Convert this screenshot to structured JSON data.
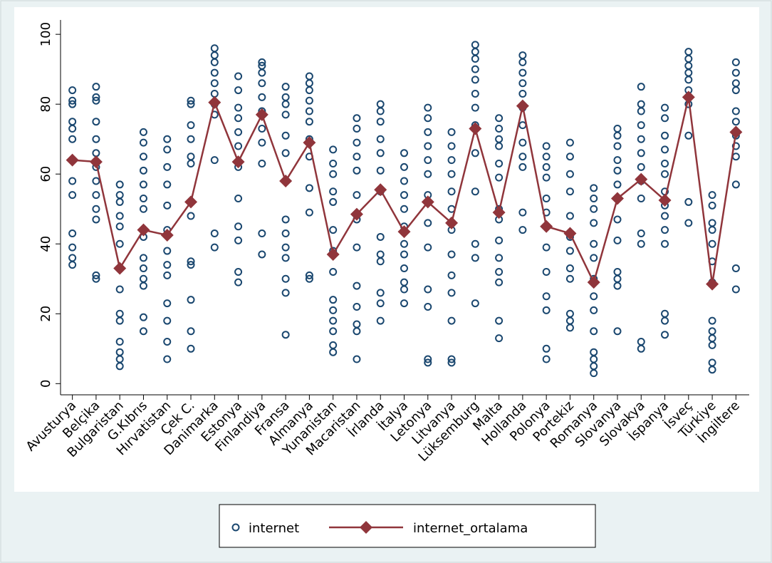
{
  "chart_data": {
    "type": "scatter",
    "categories": [
      "Avusturya",
      "Belçika",
      "Bulgaristan",
      "G.Kıbrıs",
      "Hırvatistan",
      "Çek C.",
      "Danimarka",
      "Estonya",
      "Finlandiya",
      "Fransa",
      "Almanya",
      "Yunanistan",
      "Macaristan",
      "İrlanda",
      "İtalya",
      "Letonya",
      "Litvanya",
      "Lüksemburg",
      "Malta",
      "Hollanda",
      "Polonya",
      "Portekiz",
      "Romanya",
      "Slovanya",
      "Slovakya",
      "İspanya",
      "İsveç",
      "Türkiye",
      "İngiltere"
    ],
    "ylim": [
      -3.2,
      103.5
    ],
    "yticks": [
      0,
      20,
      40,
      60,
      80,
      100
    ],
    "series": [
      {
        "name": "internet",
        "type": "scatter",
        "color": "#1a476f",
        "values": [
          [
            34,
            36,
            39,
            43,
            54,
            58,
            70,
            73,
            75,
            80,
            81,
            84
          ],
          [
            30,
            31,
            47,
            50,
            54,
            58,
            62,
            66,
            70,
            75,
            81,
            82,
            85
          ],
          [
            5,
            7,
            9,
            12,
            18,
            20,
            27,
            40,
            45,
            48,
            52,
            54,
            57
          ],
          [
            15,
            19,
            28,
            30,
            33,
            36,
            42,
            50,
            53,
            57,
            61,
            65,
            69,
            72
          ],
          [
            7,
            12,
            18,
            23,
            31,
            34,
            38,
            44,
            51,
            57,
            62,
            67,
            70
          ],
          [
            10,
            15,
            24,
            34,
            35,
            48,
            63,
            65,
            70,
            74,
            80,
            81
          ],
          [
            39,
            43,
            64,
            77,
            80,
            83,
            86,
            89,
            92,
            94,
            96
          ],
          [
            29,
            32,
            41,
            45,
            53,
            62,
            68,
            72,
            76,
            79,
            84,
            88
          ],
          [
            37,
            43,
            63,
            69,
            73,
            78,
            82,
            86,
            89,
            91,
            92
          ],
          [
            14,
            26,
            30,
            36,
            39,
            43,
            47,
            66,
            71,
            77,
            80,
            82,
            85
          ],
          [
            30,
            31,
            49,
            56,
            65,
            70,
            75,
            78,
            81,
            84,
            86,
            88
          ],
          [
            9,
            11,
            15,
            18,
            21,
            24,
            32,
            38,
            44,
            52,
            55,
            60,
            63,
            67
          ],
          [
            7,
            15,
            17,
            22,
            28,
            39,
            47,
            54,
            61,
            65,
            69,
            73,
            76
          ],
          [
            18,
            23,
            26,
            35,
            37,
            42,
            55,
            61,
            66,
            70,
            75,
            78,
            80
          ],
          [
            23,
            27,
            29,
            33,
            37,
            40,
            45,
            50,
            54,
            58,
            62,
            66
          ],
          [
            6,
            7,
            22,
            27,
            39,
            46,
            54,
            60,
            64,
            68,
            72,
            76,
            79
          ],
          [
            6,
            7,
            18,
            26,
            31,
            37,
            44,
            50,
            55,
            60,
            64,
            68,
            72
          ],
          [
            23,
            36,
            40,
            55,
            66,
            74,
            79,
            83,
            87,
            90,
            93,
            95,
            97
          ],
          [
            13,
            18,
            29,
            32,
            36,
            41,
            47,
            50,
            59,
            63,
            68,
            70,
            73,
            76
          ],
          [
            44,
            49,
            62,
            65,
            69,
            74,
            79,
            83,
            86,
            89,
            92,
            94
          ],
          [
            7,
            10,
            21,
            25,
            32,
            39,
            45,
            49,
            53,
            59,
            62,
            65,
            68
          ],
          [
            16,
            18,
            20,
            30,
            33,
            38,
            42,
            48,
            55,
            60,
            65,
            69
          ],
          [
            3,
            5,
            7,
            9,
            15,
            21,
            25,
            30,
            36,
            40,
            46,
            50,
            53,
            56
          ],
          [
            15,
            28,
            30,
            32,
            41,
            47,
            53,
            57,
            61,
            64,
            68,
            71,
            73
          ],
          [
            10,
            12,
            40,
            43,
            53,
            58,
            62,
            66,
            70,
            74,
            78,
            80,
            85
          ],
          [
            14,
            18,
            20,
            40,
            44,
            48,
            51,
            55,
            60,
            63,
            67,
            71,
            76,
            79
          ],
          [
            46,
            52,
            71,
            80,
            84,
            87,
            89,
            91,
            93,
            95
          ],
          [
            4,
            6,
            11,
            13,
            15,
            18,
            29,
            35,
            40,
            44,
            46,
            51,
            54
          ],
          [
            27,
            33,
            57,
            65,
            68,
            71,
            75,
            78,
            84,
            86,
            89,
            92
          ]
        ]
      },
      {
        "name": "internet_ortalama",
        "type": "line",
        "color": "#90353b",
        "values": [
          64,
          63.5,
          33,
          44,
          42.5,
          52,
          80.5,
          63.5,
          77,
          58,
          69,
          37,
          48.5,
          55.5,
          43.5,
          52,
          46,
          73,
          49,
          79.5,
          45,
          43,
          29,
          53,
          58.5,
          52.5,
          82,
          28.5,
          72
        ]
      }
    ]
  }
}
